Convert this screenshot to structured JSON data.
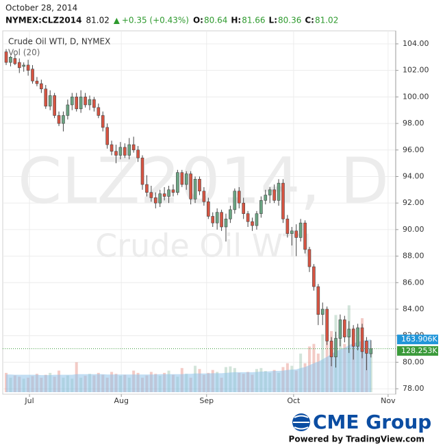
{
  "chart_data": {
    "type": "candlestick",
    "header": {
      "date": "October 28, 2014",
      "symbol": "NYMEX:CLZ2014",
      "last": 81.02,
      "change": "+0.35 (+0.43%)",
      "fields": [
        {
          "label": "O:",
          "value": 80.64
        },
        {
          "label": "H:",
          "value": 81.66
        },
        {
          "label": "L:",
          "value": 80.36
        },
        {
          "label": "C:",
          "value": 81.02
        }
      ]
    },
    "title": "Crude Oil WTI, D, NYMEX",
    "volume_title": "Vol (20)",
    "watermark": "CLZ2014, D",
    "watermark_sub": "Crude Oil WTI",
    "logo": "CME Group",
    "credit": "Powered by TradingView.com",
    "up_color": "#6ba583",
    "down_color": "#d75442",
    "grid": true,
    "xlim": [
      -0.78,
      88.63
    ],
    "xticks": [
      {
        "value": 5.3,
        "label": "Jul"
      },
      {
        "value": 26.2,
        "label": "Aug"
      },
      {
        "value": 45.6,
        "label": "Sep"
      },
      {
        "value": 65.4,
        "label": "Oct"
      },
      {
        "value": 86.9,
        "label": "Nov"
      }
    ],
    "ylim": [
      77.59,
      104.98
    ],
    "yticks": [
      {
        "value": 78,
        "label": "78.00"
      },
      {
        "value": 80,
        "label": "80.00"
      },
      {
        "value": 82,
        "label": "82.00"
      },
      {
        "value": 84,
        "label": "84.00"
      },
      {
        "value": 86,
        "label": "86.00"
      },
      {
        "value": 88,
        "label": "88.00"
      },
      {
        "value": 90,
        "label": "90.00"
      },
      {
        "value": 92,
        "label": "92.00"
      },
      {
        "value": 94,
        "label": "94.00"
      },
      {
        "value": 96,
        "label": "96.00"
      },
      {
        "value": 98,
        "label": "98.00"
      },
      {
        "value": 100,
        "label": "100.00"
      },
      {
        "value": 102,
        "label": "102.00"
      },
      {
        "value": 104,
        "label": "104.00"
      }
    ],
    "categories": [
      null,
      null,
      null,
      null,
      null,
      null,
      null,
      null,
      null,
      null,
      null,
      null,
      null,
      null,
      null,
      null,
      null,
      null,
      null,
      null,
      null,
      null,
      null,
      null,
      null,
      null,
      null,
      null,
      null,
      null,
      null,
      null,
      null,
      null,
      null,
      null,
      null,
      null,
      null,
      null,
      null,
      null,
      null,
      null,
      null,
      null,
      null,
      null,
      null,
      null,
      null,
      null,
      null,
      null,
      null,
      null,
      null,
      null,
      null,
      null,
      null,
      null,
      null,
      null,
      null,
      null,
      null,
      null,
      null,
      null,
      null,
      null,
      null,
      null,
      null,
      null,
      null,
      null,
      null,
      null,
      null,
      null,
      null,
      null
    ],
    "open": [
      103.4,
      102.6,
      102.9,
      102.6,
      102.3,
      102.4,
      102.1,
      101.2,
      101.0,
      100.6,
      99.3,
      100.1,
      98.6,
      98.0,
      98.6,
      99.4,
      100.0,
      99.1,
      100.0,
      99.4,
      99.8,
      99.2,
      98.6,
      97.7,
      96.4,
      95.9,
      95.6,
      96.2,
      95.6,
      96.4,
      96.0,
      95.4,
      93.4,
      92.8,
      92.4,
      92.0,
      92.7,
      92.5,
      93.0,
      92.8,
      94.3,
      93.4,
      94.2,
      92.3,
      93.8,
      92.9,
      92.1,
      91.0,
      90.5,
      91.3,
      90.2,
      90.8,
      91.5,
      92.9,
      92.0,
      91.2,
      90.6,
      90.3,
      91.2,
      92.2,
      92.6,
      93.0,
      92.2,
      93.5,
      90.8,
      89.7,
      89.9,
      89.4,
      90.5,
      88.5,
      87.2,
      85.7,
      83.6,
      84.0,
      81.6,
      80.4,
      81.8,
      83.2,
      81.9,
      82.5,
      81.2,
      82.6,
      81.6,
      80.64
    ],
    "high": [
      103.6,
      103.1,
      103.2,
      102.9,
      102.6,
      102.8,
      102.4,
      101.5,
      101.3,
      100.9,
      100.5,
      100.3,
      98.9,
      98.9,
      99.8,
      100.3,
      100.3,
      100.5,
      100.3,
      100.1,
      100.0,
      99.5,
      98.9,
      98.0,
      96.7,
      96.4,
      96.6,
      96.5,
      96.9,
      97.0,
      96.3,
      95.6,
      94.1,
      93.3,
      92.8,
      93.0,
      93.2,
      93.3,
      93.4,
      94.5,
      94.5,
      94.4,
      94.4,
      94.0,
      94.0,
      93.2,
      92.4,
      91.3,
      91.6,
      91.5,
      91.2,
      91.8,
      93.1,
      93.2,
      92.4,
      91.4,
      90.9,
      91.4,
      92.5,
      93.0,
      93.2,
      93.4,
      93.8,
      93.8,
      91.1,
      90.2,
      90.4,
      90.8,
      90.7,
      88.7,
      87.4,
      85.9,
      84.5,
      84.2,
      81.9,
      82.3,
      83.6,
      83.5,
      83.1,
      82.8,
      82.9,
      82.9,
      81.9,
      81.66
    ],
    "low": [
      102.4,
      102.3,
      102.4,
      101.8,
      101.9,
      101.6,
      101.0,
      100.8,
      100.3,
      99.1,
      99.0,
      98.4,
      97.8,
      97.4,
      98.3,
      99.0,
      98.9,
      98.8,
      99.2,
      99.0,
      98.9,
      98.4,
      97.4,
      96.1,
      95.6,
      95.0,
      95.3,
      95.4,
      95.3,
      95.8,
      95.1,
      93.0,
      92.5,
      92.1,
      91.6,
      91.7,
      92.2,
      92.0,
      92.5,
      92.6,
      93.2,
      93.0,
      91.9,
      92.0,
      92.6,
      91.8,
      90.8,
      90.2,
      90.0,
      89.9,
      89.1,
      90.5,
      91.2,
      91.6,
      90.8,
      90.2,
      89.9,
      90.0,
      90.9,
      91.9,
      92.0,
      92.0,
      91.8,
      90.5,
      89.4,
      88.8,
      88.0,
      89.1,
      88.2,
      86.8,
      85.4,
      82.8,
      82.8,
      81.3,
      79.7,
      79.6,
      81.2,
      81.5,
      80.7,
      80.2,
      80.9,
      80.3,
      79.4,
      80.36
    ],
    "close": [
      102.6,
      103.0,
      102.5,
      102.2,
      102.4,
      102.0,
      101.2,
      101.0,
      100.6,
      99.3,
      100.1,
      98.6,
      98.0,
      98.6,
      99.4,
      100.0,
      99.1,
      100.0,
      99.4,
      99.8,
      99.2,
      98.6,
      97.7,
      96.4,
      95.9,
      95.6,
      96.2,
      95.6,
      96.4,
      96.0,
      95.4,
      93.4,
      92.8,
      92.4,
      92.0,
      92.7,
      92.5,
      93.0,
      92.8,
      94.3,
      93.4,
      94.2,
      92.3,
      93.8,
      92.9,
      92.1,
      91.0,
      90.5,
      91.3,
      90.2,
      90.8,
      91.5,
      92.9,
      92.0,
      91.2,
      90.6,
      90.3,
      91.2,
      92.2,
      92.6,
      93.0,
      92.2,
      93.5,
      90.8,
      89.7,
      89.9,
      89.4,
      90.5,
      88.5,
      87.2,
      85.7,
      83.6,
      84.0,
      81.6,
      80.4,
      81.8,
      83.2,
      81.9,
      82.5,
      81.2,
      82.6,
      80.8,
      80.67,
      81.02
    ],
    "volume_lim": [
      0,
      1130
    ],
    "volume": [
      60,
      45,
      52,
      48,
      42,
      45,
      50,
      57,
      45,
      54,
      60,
      48,
      67,
      45,
      52,
      42,
      93,
      45,
      51,
      57,
      52,
      60,
      54,
      45,
      63,
      57,
      51,
      54,
      45,
      67,
      60,
      45,
      52,
      63,
      57,
      51,
      60,
      67,
      54,
      48,
      75,
      57,
      45,
      82,
      72,
      54,
      60,
      69,
      63,
      45,
      78,
      80,
      75,
      60,
      57,
      63,
      54,
      72,
      75,
      66,
      60,
      69,
      60,
      78,
      90,
      82,
      67,
      120,
      90,
      142,
      150,
      120,
      180,
      200,
      190,
      240,
      210,
      150,
      270,
      200,
      170,
      230,
      150,
      128.253
    ],
    "volume_ma": [
      55,
      55,
      54,
      54,
      54,
      54,
      54,
      54,
      53,
      53,
      53,
      54,
      54,
      54,
      54,
      54,
      56,
      56,
      56,
      56,
      56,
      56,
      56,
      55,
      55,
      55,
      55,
      55,
      55,
      55,
      55,
      55,
      55,
      55,
      55,
      56,
      56,
      56,
      56,
      56,
      56,
      57,
      57,
      58,
      58,
      58,
      58,
      59,
      59,
      59,
      60,
      61,
      62,
      62,
      62,
      62,
      62,
      63,
      64,
      64,
      65,
      66,
      66,
      67,
      69,
      70,
      71,
      75,
      78,
      84,
      90,
      95,
      102,
      110,
      118,
      127,
      133,
      138,
      146,
      152,
      156,
      160,
      162,
      163.906
    ],
    "volume_labels": [
      {
        "value": 163.906,
        "label": "163.906K",
        "color": "#2196d9"
      },
      {
        "value": 128.253,
        "label": "128.253K",
        "color": "#3a9a3a"
      }
    ]
  }
}
